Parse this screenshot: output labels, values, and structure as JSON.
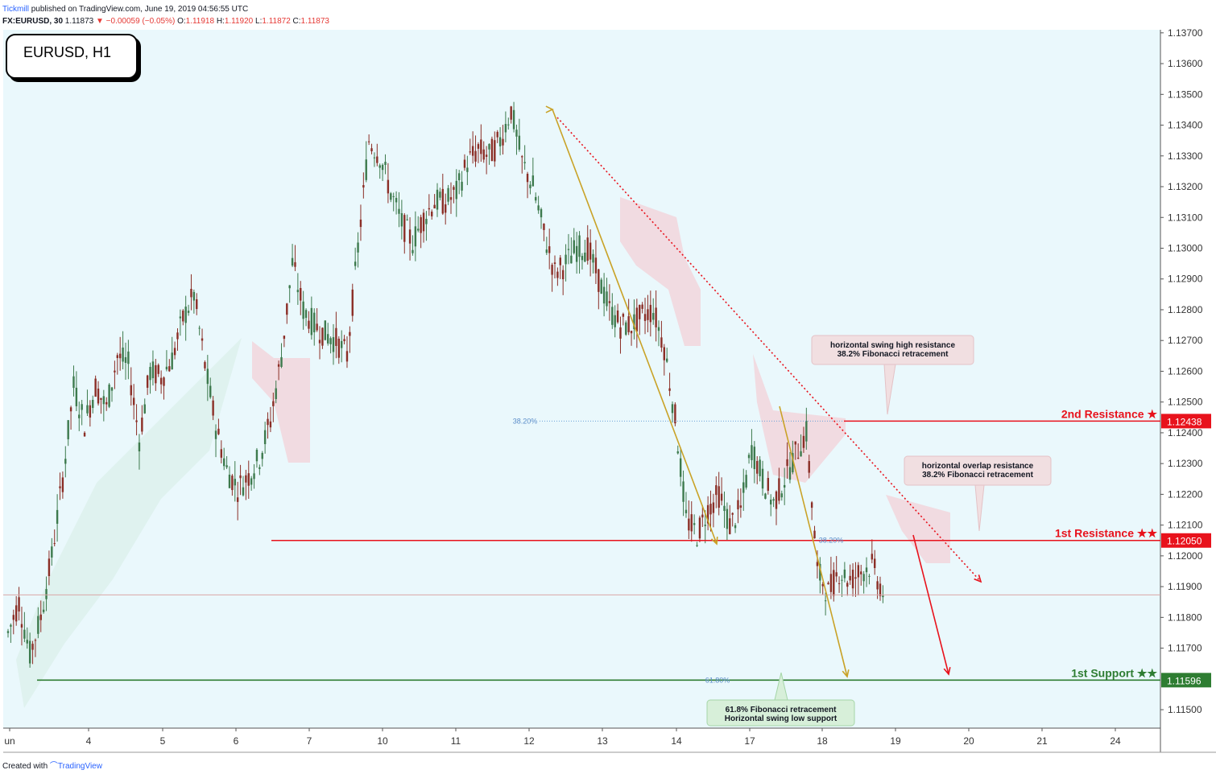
{
  "header": {
    "publisher": "Tickmill",
    "published_text": "published on TradingView.com, June 19, 2019 04:56:55 UTC",
    "symbol": "FX:EURUSD, 30",
    "last": "1.11873",
    "change": "−0.00059 (−0.05%)",
    "open_label": "O:",
    "open": "1.11918",
    "high_label": "H:",
    "high": "1.11920",
    "low_label": "L:",
    "low": "1.11872",
    "close_label": "C:",
    "close": "1.11873"
  },
  "ticker_label": "EURUSD, H1",
  "footer": {
    "created_with": "Created with",
    "brand": "TradingView"
  },
  "colors": {
    "bg": "#eaf8fc",
    "up": "#3d7a4d",
    "down": "#8b2e26",
    "resistance": "#e8121c",
    "support": "#2e7d32",
    "fib_arrow": "#c9a227",
    "cloud_red": "#f3d3da",
    "cloud_green": "#d7efe6"
  },
  "chart_data": {
    "type": "candlestick",
    "symbol": "EURUSD",
    "timeframe": "H1",
    "ylim": [
      1.1144,
      1.1371
    ],
    "yticks": [
      "1.13700",
      "1.13600",
      "1.13500",
      "1.13400",
      "1.13300",
      "1.13200",
      "1.13100",
      "1.13000",
      "1.12900",
      "1.12800",
      "1.12700",
      "1.12600",
      "1.12500",
      "1.12400",
      "1.12300",
      "1.12200",
      "1.12100",
      "1.12000",
      "1.11900",
      "1.11800",
      "1.11700",
      "1.11500"
    ],
    "xticks": [
      "un",
      "4",
      "5",
      "6",
      "7",
      "10",
      "11",
      "12",
      "13",
      "14",
      "17",
      "18",
      "19",
      "20",
      "21",
      "24"
    ],
    "price_path": [
      [
        0,
        1.1175
      ],
      [
        2,
        1.1185
      ],
      [
        4,
        1.1168
      ],
      [
        6,
        1.118
      ],
      [
        8,
        1.12
      ],
      [
        10,
        1.1225
      ],
      [
        12,
        1.1255
      ],
      [
        14,
        1.1243
      ],
      [
        16,
        1.1255
      ],
      [
        18,
        1.1248
      ],
      [
        20,
        1.1265
      ],
      [
        22,
        1.1262
      ],
      [
        24,
        1.1238
      ],
      [
        26,
        1.126
      ],
      [
        28,
        1.1258
      ],
      [
        30,
        1.1264
      ],
      [
        32,
        1.1277
      ],
      [
        34,
        1.1285
      ],
      [
        36,
        1.1262
      ],
      [
        38,
        1.1242
      ],
      [
        40,
        1.1228
      ],
      [
        42,
        1.1222
      ],
      [
        44,
        1.1226
      ],
      [
        46,
        1.1232
      ],
      [
        48,
        1.1244
      ],
      [
        50,
        1.1265
      ],
      [
        52,
        1.1295
      ],
      [
        54,
        1.128
      ],
      [
        56,
        1.1275
      ],
      [
        58,
        1.1272
      ],
      [
        60,
        1.127
      ],
      [
        62,
        1.1265
      ],
      [
        64,
        1.13
      ],
      [
        66,
        1.1335
      ],
      [
        68,
        1.133
      ],
      [
        70,
        1.1318
      ],
      [
        72,
        1.1308
      ],
      [
        74,
        1.1302
      ],
      [
        76,
        1.131
      ],
      [
        78,
        1.1315
      ],
      [
        80,
        1.1315
      ],
      [
        82,
        1.1318
      ],
      [
        84,
        1.1328
      ],
      [
        86,
        1.1332
      ],
      [
        88,
        1.133
      ],
      [
        90,
        1.1335
      ],
      [
        92,
        1.1345
      ],
      [
        94,
        1.1328
      ],
      [
        96,
        1.132
      ],
      [
        98,
        1.1305
      ],
      [
        100,
        1.1292
      ],
      [
        102,
        1.1295
      ],
      [
        104,
        1.13
      ],
      [
        106,
        1.13
      ],
      [
        108,
        1.129
      ],
      [
        110,
        1.128
      ],
      [
        112,
        1.1275
      ],
      [
        114,
        1.1275
      ],
      [
        116,
        1.1278
      ],
      [
        118,
        1.128
      ],
      [
        120,
        1.1268
      ],
      [
        122,
        1.1245
      ],
      [
        124,
        1.1212
      ],
      [
        126,
        1.1207
      ],
      [
        128,
        1.1215
      ],
      [
        130,
        1.122
      ],
      [
        132,
        1.121
      ],
      [
        134,
        1.1215
      ],
      [
        136,
        1.1235
      ],
      [
        138,
        1.1225
      ],
      [
        140,
        1.1217
      ],
      [
        142,
        1.1225
      ],
      [
        144,
        1.1233
      ],
      [
        146,
        1.124
      ],
      [
        148,
        1.1195
      ],
      [
        150,
        1.1188
      ],
      [
        152,
        1.1195
      ],
      [
        154,
        1.1192
      ],
      [
        156,
        1.1195
      ],
      [
        158,
        1.1197
      ],
      [
        160,
        1.1188
      ]
    ],
    "total_bars": 200,
    "horizontal_levels": [
      {
        "label": "2nd Resistance ★",
        "price": "1.12438"
      },
      {
        "label": "1st Resistance ★★",
        "price": "1.12050"
      },
      {
        "label": "1st Support ★★",
        "price": "1.11596"
      }
    ],
    "current_price": 1.11873,
    "fib_labels": [
      {
        "text": "38.20%",
        "price": 1.12438
      },
      {
        "text": "38.20%",
        "price": 1.1205
      },
      {
        "text": "61.80%",
        "price": 1.11596
      }
    ],
    "annotations": [
      {
        "line1": "horizontal swing high resistance",
        "line2": "38.2% Fibonacci retracement"
      },
      {
        "line1": "horizontal overlap resistance",
        "line2": "38.2% Fibonacci retracement"
      },
      {
        "line1": "61.8% Fibonacci retracement",
        "line2": "Horizontal swing low support"
      }
    ]
  }
}
